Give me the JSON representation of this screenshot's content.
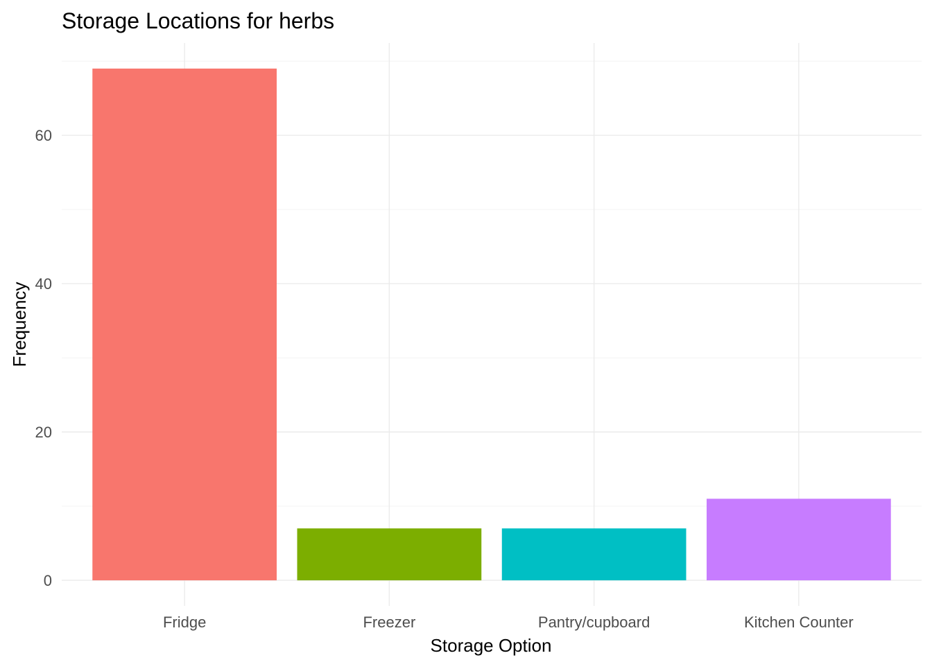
{
  "chart_data": {
    "type": "bar",
    "title": "Storage Locations for herbs",
    "xlabel": "Storage Option",
    "ylabel": "Frequency",
    "categories": [
      "Fridge",
      "Freezer",
      "Pantry/cupboard",
      "Kitchen Counter"
    ],
    "values": [
      69,
      7,
      7,
      11
    ],
    "colors": [
      "#F8766D",
      "#7CAE00",
      "#00BFC4",
      "#C77CFF"
    ],
    "ylim": [
      -3.45,
      72.45
    ],
    "yticks": [
      0,
      20,
      40,
      60
    ],
    "yticks_labels": [
      "0",
      "20",
      "40",
      "60"
    ],
    "minor_yticks": [
      10,
      30,
      50,
      70
    ],
    "grid": true,
    "legend": "none"
  }
}
